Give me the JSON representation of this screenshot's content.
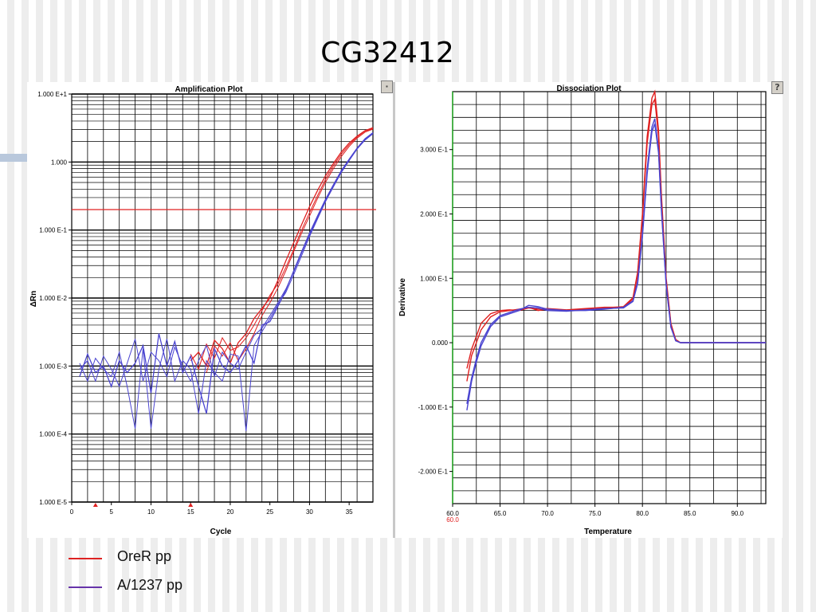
{
  "slide": {
    "title": "CG32412"
  },
  "legend": [
    {
      "label": "OreR pp",
      "color": "#dd2222"
    },
    {
      "label": "A/1237 pp",
      "color": "#6633aa"
    }
  ],
  "colors": {
    "orer": "#e02020",
    "a1237": "#4a44d0",
    "threshold": "#e02020",
    "grid": "#000000",
    "panel_background": "#ffffff"
  },
  "icons": {
    "help_button": "question-mark-icon",
    "marker": "red-triangle-marker-icon"
  },
  "chart_data": [
    {
      "type": "line",
      "title": "Amplification Plot",
      "xlabel": "Cycle",
      "ylabel": "ΔRn",
      "y_scale": "log10",
      "xlim": [
        0,
        38
      ],
      "ylim": [
        1e-05,
        10
      ],
      "x_ticks": [
        0,
        5,
        10,
        15,
        20,
        25,
        30,
        35
      ],
      "x_tick_labels": [
        "0",
        "5",
        "10",
        "15",
        "20",
        "25",
        "30",
        "35"
      ],
      "y_ticks": [
        10,
        1,
        0.1,
        0.01,
        0.001,
        0.0001,
        1e-05
      ],
      "y_tick_labels": [
        "1.000 E+1",
        "1.000",
        "1.000 E-1",
        "1.000 E-2",
        "1.000 E-3",
        "1.000 E-4",
        "1.000 E-5"
      ],
      "threshold": 0.2,
      "grid": true,
      "markers_x": [
        3,
        15
      ],
      "series": [
        {
          "group": "OreR pp",
          "x": [
            15,
            16,
            17,
            18,
            19,
            20,
            21,
            22,
            23,
            24,
            25,
            26,
            27,
            28,
            29,
            30,
            31,
            32,
            33,
            34,
            35,
            36,
            37,
            38
          ],
          "y": [
            0.0012,
            0.0016,
            0.001,
            0.0024,
            0.0018,
            0.0011,
            0.0022,
            0.003,
            0.005,
            0.007,
            0.01,
            0.018,
            0.035,
            0.065,
            0.12,
            0.22,
            0.38,
            0.62,
            0.95,
            1.4,
            1.9,
            2.4,
            2.9,
            3.2
          ]
        },
        {
          "group": "OreR pp",
          "x": [
            15,
            16,
            17,
            18,
            19,
            20,
            21,
            22,
            23,
            24,
            25,
            26,
            27,
            28,
            29,
            30,
            31,
            32,
            33,
            34,
            35,
            36,
            37,
            38
          ],
          "y": [
            0.0015,
            0.0009,
            0.0021,
            0.0013,
            0.0026,
            0.0017,
            0.0019,
            0.0026,
            0.004,
            0.0065,
            0.011,
            0.016,
            0.028,
            0.052,
            0.1,
            0.18,
            0.32,
            0.55,
            0.88,
            1.3,
            1.8,
            2.35,
            2.85,
            3.1
          ]
        },
        {
          "group": "OreR pp",
          "x": [
            17,
            18,
            19,
            20,
            21,
            22,
            23,
            24,
            25,
            26,
            27,
            28,
            29,
            30,
            31,
            32,
            33,
            34,
            35,
            36,
            37,
            38
          ],
          "y": [
            0.0008,
            0.002,
            0.0014,
            0.0022,
            0.0012,
            0.0018,
            0.003,
            0.0055,
            0.0085,
            0.014,
            0.025,
            0.048,
            0.09,
            0.16,
            0.29,
            0.5,
            0.8,
            1.2,
            1.7,
            2.25,
            2.75,
            3.05
          ]
        },
        {
          "group": "A/1237 pp",
          "x": [
            1,
            2,
            3,
            4,
            5,
            6,
            7,
            8,
            9,
            10,
            11,
            12,
            13,
            14,
            15,
            16,
            17,
            18,
            19,
            20,
            21,
            22,
            23,
            24,
            25,
            26,
            27,
            28,
            29,
            30,
            31,
            32,
            33,
            34,
            35,
            36,
            37,
            38
          ],
          "y": [
            0.0007,
            0.0015,
            0.0008,
            0.001,
            0.0005,
            0.0012,
            0.0008,
            0.0011,
            0.002,
            0.0004,
            0.003,
            0.001,
            0.0023,
            0.0008,
            0.0014,
            0.0005,
            0.0002,
            0.0018,
            0.001,
            0.0008,
            0.0012,
            0.002,
            0.0011,
            0.004,
            0.0045,
            0.0075,
            0.013,
            0.025,
            0.048,
            0.09,
            0.16,
            0.28,
            0.46,
            0.74,
            1.1,
            1.6,
            2.2,
            2.7
          ]
        },
        {
          "group": "A/1237 pp",
          "x": [
            1,
            2,
            3,
            4,
            5,
            6,
            7,
            8,
            9,
            10,
            11,
            12,
            13,
            14,
            15,
            16,
            17,
            18,
            19,
            20,
            21,
            22,
            23,
            24,
            25,
            26,
            27,
            28,
            29,
            30,
            31,
            32,
            33,
            34,
            35,
            36,
            37,
            38
          ],
          "y": [
            0.0011,
            0.0006,
            0.0013,
            0.0009,
            0.0007,
            0.0016,
            0.0005,
            0.00012,
            0.0018,
            0.00012,
            0.0009,
            0.0025,
            0.0006,
            0.0012,
            0.0009,
            0.0002,
            0.0012,
            0.0008,
            0.0006,
            0.0015,
            0.0014,
            0.00011,
            0.002,
            0.0032,
            0.005,
            0.008,
            0.012,
            0.022,
            0.042,
            0.08,
            0.145,
            0.26,
            0.43,
            0.7,
            1.05,
            1.55,
            2.1,
            2.6
          ]
        },
        {
          "group": "A/1237 pp",
          "x": [
            1,
            2,
            3,
            4,
            5,
            6,
            7,
            8,
            9,
            10,
            11,
            12,
            13,
            14,
            15,
            16,
            17,
            18,
            19,
            20,
            21,
            22,
            23,
            24,
            25,
            26,
            27,
            28,
            29,
            30,
            31,
            32,
            33,
            34,
            35,
            36,
            37,
            38
          ],
          "y": [
            0.0009,
            0.0012,
            0.0006,
            0.0014,
            0.0009,
            0.0005,
            0.0011,
            0.0025,
            0.0006,
            0.0016,
            0.0012,
            0.0007,
            0.0019,
            0.001,
            0.0006,
            0.0012,
            0.002,
            0.0007,
            0.0016,
            0.0011,
            0.0009,
            0.0016,
            0.0028,
            0.0036,
            0.0055,
            0.0085,
            0.0135,
            0.024,
            0.046,
            0.085,
            0.15,
            0.27,
            0.45,
            0.72,
            1.08,
            1.58,
            2.15,
            2.65
          ]
        }
      ]
    },
    {
      "type": "line",
      "title": "Dissociation Plot",
      "xlabel": "Temperature",
      "ylabel": "Derivative",
      "xlim": [
        60,
        93
      ],
      "ylim": [
        -0.25,
        0.39
      ],
      "x_ticks": [
        60,
        65,
        70,
        75,
        80,
        85,
        90
      ],
      "x_tick_labels": [
        "60.0",
        "65.0",
        "70.0",
        "75.0",
        "80.0",
        "85.0",
        "90.0"
      ],
      "x_axis_start_label": "60.0",
      "y_ticks": [
        0.3,
        0.2,
        0.1,
        0,
        -0.1,
        -0.2
      ],
      "y_tick_labels": [
        "3.000 E-1",
        "2.000 E-1",
        "1.000 E-1",
        "0.000",
        "-1.000 E-1",
        "-2.000 E-1"
      ],
      "grid": true,
      "series": [
        {
          "group": "OreR pp",
          "x": [
            61.5,
            62,
            62.5,
            63,
            64,
            65,
            66,
            67,
            68,
            69,
            70,
            72,
            74,
            76,
            78,
            79,
            79.5,
            80,
            80.5,
            81,
            81.3,
            81.7,
            82,
            82.5,
            83,
            83.5,
            84,
            86,
            88,
            90,
            93
          ],
          "y": [
            -0.06,
            -0.02,
            0.0,
            0.02,
            0.04,
            0.048,
            0.05,
            0.052,
            0.055,
            0.05,
            0.052,
            0.05,
            0.052,
            0.054,
            0.056,
            0.07,
            0.11,
            0.2,
            0.32,
            0.38,
            0.39,
            0.33,
            0.23,
            0.1,
            0.03,
            0.005,
            0.0,
            0.0,
            0.0,
            0.0,
            0.0
          ]
        },
        {
          "group": "OreR pp",
          "x": [
            61.5,
            62,
            62.5,
            63,
            64,
            65,
            66,
            67,
            68,
            69,
            70,
            72,
            74,
            76,
            78,
            79,
            79.5,
            80,
            80.5,
            81,
            81.3,
            81.7,
            82,
            82.5,
            83,
            83.5,
            84,
            86,
            88,
            90,
            93
          ],
          "y": [
            -0.04,
            -0.01,
            0.01,
            0.03,
            0.045,
            0.05,
            0.051,
            0.05,
            0.054,
            0.052,
            0.053,
            0.051,
            0.053,
            0.055,
            0.055,
            0.068,
            0.105,
            0.195,
            0.31,
            0.37,
            0.378,
            0.32,
            0.22,
            0.095,
            0.028,
            0.004,
            0.0,
            0.0,
            0.0,
            0.0,
            0.0
          ]
        },
        {
          "group": "A/1237 pp",
          "x": [
            61.5,
            62,
            62.5,
            63,
            64,
            65,
            66,
            67,
            68,
            69,
            70,
            72,
            74,
            76,
            78,
            79,
            79.5,
            80,
            80.5,
            81,
            81.3,
            81.7,
            82,
            82.5,
            83,
            83.5,
            84,
            86,
            88,
            90,
            93
          ],
          "y": [
            -0.105,
            -0.06,
            -0.03,
            -0.005,
            0.025,
            0.04,
            0.045,
            0.05,
            0.058,
            0.056,
            0.052,
            0.05,
            0.05,
            0.052,
            0.055,
            0.065,
            0.095,
            0.17,
            0.27,
            0.335,
            0.348,
            0.3,
            0.21,
            0.09,
            0.025,
            0.003,
            0.0,
            0.0,
            0.0,
            0.0,
            0.0
          ]
        },
        {
          "group": "A/1237 pp",
          "x": [
            61.5,
            62,
            62.5,
            63,
            64,
            65,
            66,
            67,
            68,
            69,
            70,
            72,
            74,
            76,
            78,
            79,
            79.5,
            80,
            80.5,
            81,
            81.3,
            81.7,
            82,
            82.5,
            83,
            83.5,
            84,
            86,
            88,
            90,
            93
          ],
          "y": [
            -0.095,
            -0.055,
            -0.025,
            0.0,
            0.028,
            0.042,
            0.047,
            0.052,
            0.055,
            0.054,
            0.05,
            0.049,
            0.051,
            0.053,
            0.054,
            0.064,
            0.092,
            0.165,
            0.262,
            0.328,
            0.34,
            0.295,
            0.205,
            0.088,
            0.024,
            0.003,
            0.0,
            0.0,
            0.0,
            0.0,
            0.0
          ]
        }
      ]
    }
  ]
}
